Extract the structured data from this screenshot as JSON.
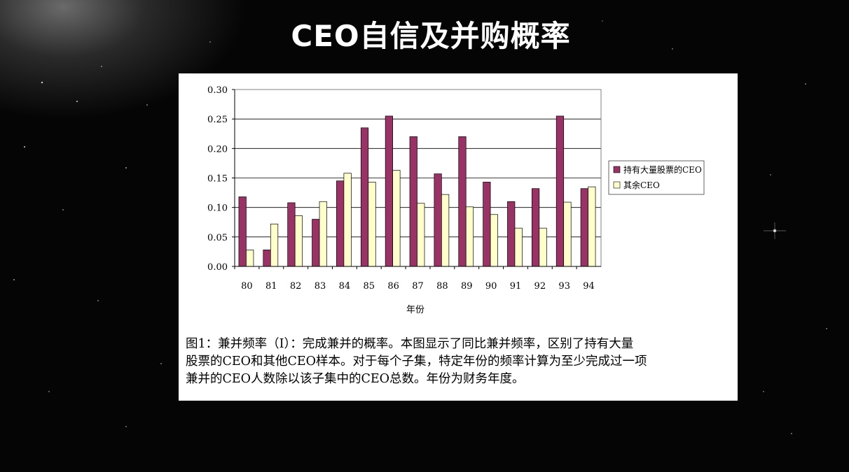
{
  "slide": {
    "title": "CEO自信及并购概率",
    "caption_lines": [
      "图1：兼并频率（I）：完成兼并的概率。本图显示了同比兼并频率，区别了持有大量",
      "股票的CEO和其他CEO样本。对于每个子集，特定年份的频率计算为至少完成过一项",
      "兼并的CEO人数除以该子集中的CEO总数。年份为财务年度。"
    ]
  },
  "chart_data": {
    "type": "bar",
    "title": "",
    "xlabel": "年份",
    "ylabel": "",
    "categories": [
      "80",
      "81",
      "82",
      "83",
      "84",
      "85",
      "86",
      "87",
      "88",
      "89",
      "90",
      "91",
      "92",
      "93",
      "94"
    ],
    "series": [
      {
        "name": "持有大量股票的CEO",
        "color": "#993366",
        "values": [
          0.118,
          0.028,
          0.108,
          0.08,
          0.145,
          0.235,
          0.255,
          0.22,
          0.157,
          0.22,
          0.143,
          0.11,
          0.132,
          0.255,
          0.132
        ]
      },
      {
        "name": "其余CEO",
        "color": "#FFFFCC",
        "values": [
          0.028,
          0.072,
          0.086,
          0.11,
          0.158,
          0.143,
          0.163,
          0.107,
          0.122,
          0.101,
          0.088,
          0.065,
          0.065,
          0.109,
          0.135
        ]
      }
    ],
    "ylim": [
      0,
      0.3
    ],
    "yticks": [
      "0.00",
      "0.05",
      "0.10",
      "0.15",
      "0.20",
      "0.25",
      "0.30"
    ],
    "grid": true,
    "legend_position": "right"
  }
}
